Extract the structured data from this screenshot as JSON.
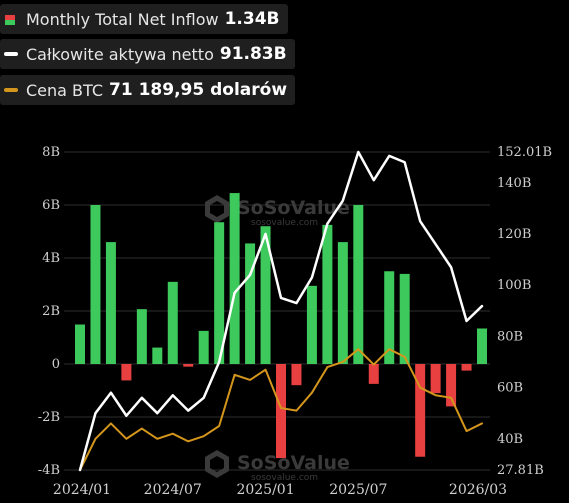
{
  "legend": [
    {
      "name": "Monthly Total Net Inflow",
      "value": "1.34B",
      "icon": "bar-pair-icon",
      "colors": [
        "#3ec95c",
        "#e84040"
      ]
    },
    {
      "name": "Całkowite aktywa netto",
      "value": "91.83B",
      "icon": "line-white-icon",
      "color": "#ffffff"
    },
    {
      "name": "Cena BTC",
      "value": "71 189,95 dolarów",
      "icon": "line-gold-icon",
      "color": "#d4961c"
    }
  ],
  "watermark": {
    "brand": "SoSoValue",
    "url": "sosovalue.com"
  },
  "chart_data": {
    "type": "bar",
    "x_tick_labels": [
      "2024/01",
      "2024/07",
      "2025/01",
      "2025/07",
      "2026/03"
    ],
    "categories": [
      "2024/01",
      "2024/02",
      "2024/03",
      "2024/04",
      "2024/05",
      "2024/06",
      "2024/07",
      "2024/08",
      "2024/09",
      "2024/10",
      "2024/11",
      "2024/12",
      "2025/01",
      "2025/02",
      "2025/03",
      "2025/04",
      "2025/05",
      "2025/06",
      "2025/07",
      "2025/08",
      "2025/09",
      "2025/10",
      "2025/11",
      "2025/12",
      "2026/01",
      "2026/02",
      "2026/03"
    ],
    "left_axis": {
      "ticks": [
        "-4B",
        "-2B",
        "0",
        "2B",
        "4B",
        "6B",
        "8B"
      ],
      "ylim": [
        -4,
        8
      ]
    },
    "right_axis": {
      "ticks": [
        "27.81B",
        "40B",
        "60B",
        "80B",
        "100B",
        "120B",
        "140B",
        "152.01B"
      ],
      "ylim": [
        27.81,
        152.01
      ]
    },
    "colors": {
      "positive": "#3ec95c",
      "negative": "#e84040",
      "assets": "#ffffff",
      "btc": "#d4961c",
      "grid": "#2e2e2e"
    },
    "series": [
      {
        "name": "Monthly Total Net Inflow",
        "axis": "left",
        "values": [
          1.49,
          6.0,
          4.6,
          -0.62,
          2.07,
          0.62,
          3.1,
          -0.1,
          1.25,
          5.35,
          6.45,
          4.55,
          5.2,
          -3.55,
          -0.8,
          2.95,
          5.25,
          4.6,
          6.0,
          -0.75,
          3.5,
          3.4,
          -3.5,
          -1.1,
          -1.6,
          -0.25,
          1.34
        ]
      },
      {
        "name": "Całkowite aktywa netto",
        "axis": "right",
        "values": [
          27.81,
          50,
          58,
          49,
          56,
          50,
          57,
          51,
          56,
          70,
          97,
          104,
          120,
          95,
          93,
          103,
          124,
          133,
          152.01,
          141,
          150.5,
          148,
          125,
          116,
          107,
          86,
          91.83
        ]
      },
      {
        "name": "Cena BTC",
        "axis": "right",
        "values": [
          27.81,
          40,
          46,
          40,
          44,
          40,
          42,
          39,
          41,
          45,
          65,
          63,
          67,
          52,
          51,
          58,
          68,
          70,
          75,
          69,
          75,
          72,
          60,
          57,
          56,
          43,
          46
        ]
      }
    ]
  }
}
